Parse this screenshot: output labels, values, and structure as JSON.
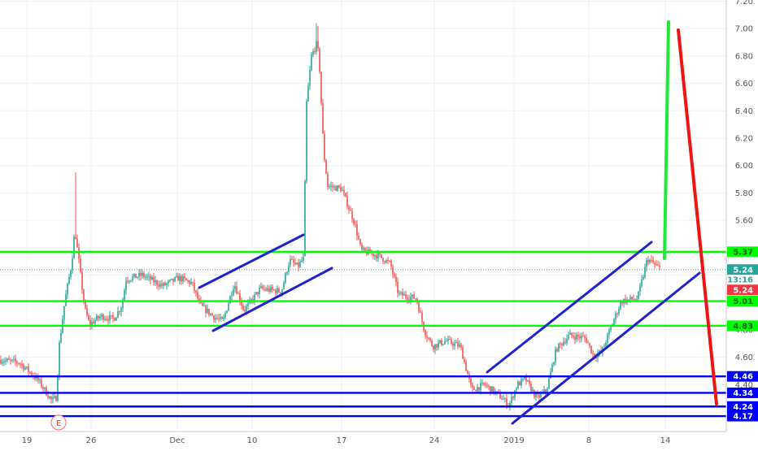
{
  "chart_data": {
    "type": "candlestick",
    "title": "",
    "xlabel": "",
    "ylabel": "",
    "ylim": [
      3.68,
      7.2
    ],
    "grid": true,
    "x_tick_labels": [
      "19",
      "26",
      "Dec",
      "10",
      "17",
      "24",
      "2019",
      "8",
      "14"
    ],
    "y_tick_labels": [
      "7.20",
      "7.00",
      "6.80",
      "6.60",
      "6.40",
      "6.20",
      "6.00",
      "5.80",
      "5.60",
      "4.80",
      "4.60",
      "4.40"
    ],
    "price_path": [
      [
        0,
        4.58
      ],
      [
        24,
        4.56
      ],
      [
        46,
        4.44
      ],
      [
        64,
        4.28
      ],
      [
        70,
        4.31
      ],
      [
        72,
        4.65
      ],
      [
        80,
        5.02
      ],
      [
        88,
        5.28
      ],
      [
        92,
        5.53
      ],
      [
        97,
        5.3
      ],
      [
        104,
        4.96
      ],
      [
        110,
        4.84
      ],
      [
        124,
        4.9
      ],
      [
        140,
        4.88
      ],
      [
        150,
        4.98
      ],
      [
        155,
        5.17
      ],
      [
        175,
        5.2
      ],
      [
        200,
        5.12
      ],
      [
        220,
        5.18
      ],
      [
        236,
        5.14
      ],
      [
        246,
        4.98
      ],
      [
        262,
        4.9
      ],
      [
        274,
        4.86
      ],
      [
        288,
        5.14
      ],
      [
        300,
        4.94
      ],
      [
        320,
        5.1
      ],
      [
        346,
        5.08
      ],
      [
        356,
        5.31
      ],
      [
        366,
        5.26
      ],
      [
        374,
        5.33
      ],
      [
        376,
        6.4
      ],
      [
        383,
        6.8
      ],
      [
        390,
        6.9
      ],
      [
        393,
        6.7
      ],
      [
        398,
        6.1
      ],
      [
        403,
        5.85
      ],
      [
        420,
        5.83
      ],
      [
        436,
        5.58
      ],
      [
        444,
        5.38
      ],
      [
        466,
        5.34
      ],
      [
        480,
        5.28
      ],
      [
        490,
        5.06
      ],
      [
        512,
        5.03
      ],
      [
        522,
        4.79
      ],
      [
        532,
        4.68
      ],
      [
        548,
        4.72
      ],
      [
        566,
        4.68
      ],
      [
        580,
        4.36
      ],
      [
        596,
        4.4
      ],
      [
        612,
        4.33
      ],
      [
        626,
        4.25
      ],
      [
        636,
        4.4
      ],
      [
        646,
        4.44
      ],
      [
        660,
        4.3
      ],
      [
        672,
        4.36
      ],
      [
        684,
        4.66
      ],
      [
        700,
        4.76
      ],
      [
        720,
        4.74
      ],
      [
        730,
        4.61
      ],
      [
        740,
        4.64
      ],
      [
        752,
        4.83
      ],
      [
        764,
        5.01
      ],
      [
        784,
        5.03
      ],
      [
        796,
        5.32
      ],
      [
        812,
        5.24
      ]
    ],
    "horizontal_levels": [
      {
        "value": 5.37,
        "label": "5.37",
        "color": "#00ff00"
      },
      {
        "value": 5.01,
        "label": "5.01",
        "color": "#00ff00"
      },
      {
        "value": 4.83,
        "label": "4.83",
        "color": "#00ff00"
      },
      {
        "value": 4.46,
        "label": "4.46",
        "color": "#0000ff"
      },
      {
        "value": 4.34,
        "label": "4.34",
        "color": "#0000ff"
      },
      {
        "value": 4.24,
        "label": "4.24",
        "color": "#0000ff"
      },
      {
        "value": 4.17,
        "label": "4.17",
        "color": "#0000ff"
      }
    ],
    "last_price": {
      "value": 5.24,
      "label": "5.24",
      "color": "#26a69a"
    },
    "countdown": {
      "label": "13:16"
    },
    "secondary_price": {
      "value": 5.24,
      "label": "5.24",
      "color": "#f23645"
    },
    "event_marker": {
      "label": "E"
    },
    "colors": {
      "up": "#26a69a",
      "down": "#ef5350",
      "grid": "#eef0f4",
      "axis_text": "#555555"
    }
  }
}
